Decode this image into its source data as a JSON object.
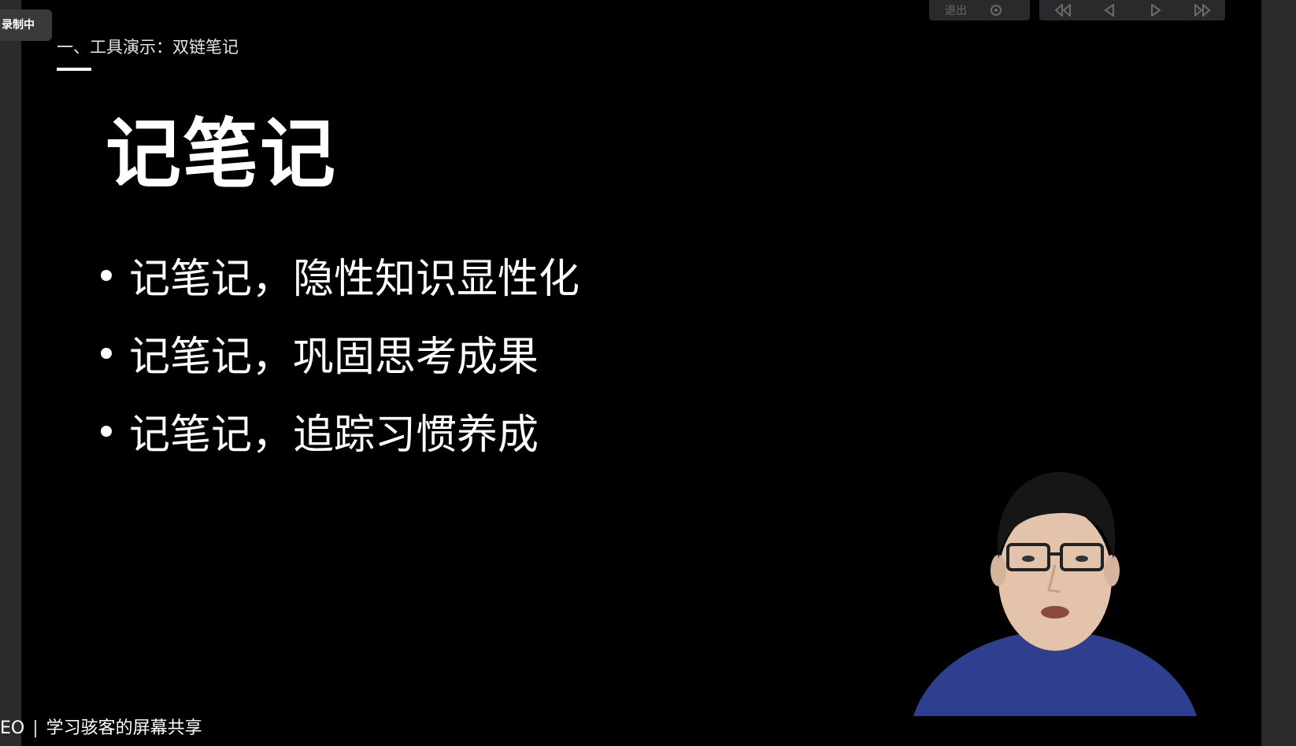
{
  "recording": {
    "badge": "录制中"
  },
  "toolbar": {
    "exit_label": "退出",
    "icons": [
      "gear-icon",
      "skip-back-icon",
      "prev-icon",
      "play-icon",
      "skip-forward-icon"
    ]
  },
  "slide": {
    "section_title": "一、工具演示：双链笔记",
    "title": "记笔记",
    "bullets": [
      "记笔记，隐性知识显性化",
      "记笔记，巩固思考成果",
      "记笔记，追踪习惯养成"
    ]
  },
  "share": {
    "prefix": "EO",
    "separator": "|",
    "label": "学习骇客的屏幕共享"
  },
  "colors": {
    "background": "#000000",
    "chrome": "#2b2b2d",
    "text": "#ffffff",
    "shirt": "#2f3f8f"
  }
}
